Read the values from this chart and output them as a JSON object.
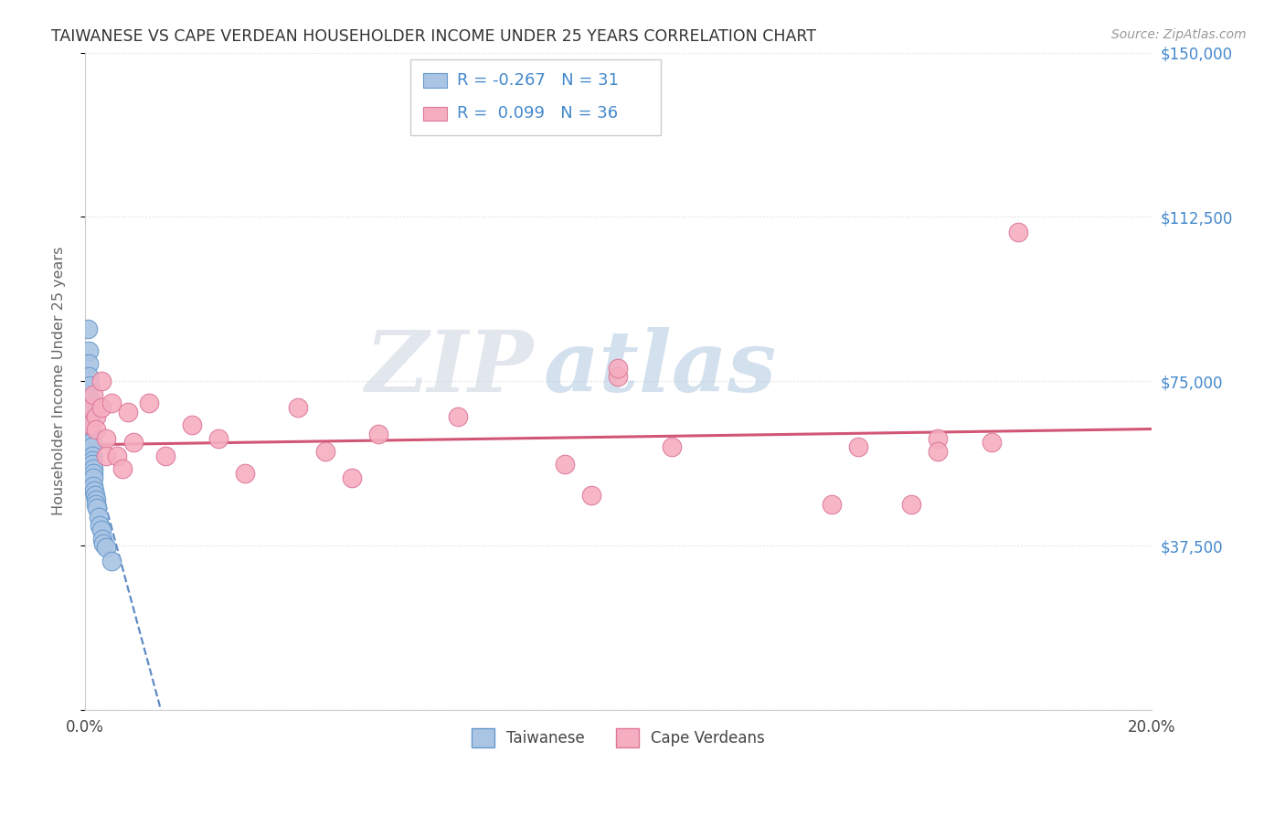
{
  "title": "TAIWANESE VS CAPE VERDEAN HOUSEHOLDER INCOME UNDER 25 YEARS CORRELATION CHART",
  "source": "Source: ZipAtlas.com",
  "ylabel": "Householder Income Under 25 years",
  "xlim": [
    0.0,
    0.2
  ],
  "ylim": [
    0,
    150000
  ],
  "yticks": [
    0,
    37500,
    75000,
    112500,
    150000
  ],
  "ytick_labels_right": [
    "",
    "$37,500",
    "$75,000",
    "$112,500",
    "$150,000"
  ],
  "xtick_vals": [
    0.0,
    0.025,
    0.05,
    0.075,
    0.1,
    0.125,
    0.15,
    0.175,
    0.2
  ],
  "taiwanese_color": "#aac4e4",
  "taiwanese_edge": "#6699cc",
  "cape_verdean_color": "#f5aec0",
  "cape_verdean_edge": "#dd7799",
  "trend_tw_color": "#4477bb",
  "trend_cv_color": "#cc4466",
  "R_taiwanese": -0.267,
  "N_taiwanese": 31,
  "R_cape_verdean": 0.099,
  "N_cape_verdean": 36,
  "watermark_zip": "ZIP",
  "watermark_atlas": "atlas",
  "background_color": "#ffffff",
  "grid_color": "#dddddd",
  "title_color": "#333333",
  "axis_label_color": "#666666",
  "right_tick_color": "#4488cc",
  "legend_text_color": "#4488cc",
  "tw_trend_intercept": 64000,
  "tw_trend_slope": -4500000,
  "cv_trend_intercept": 60500,
  "cv_trend_slope": 18000,
  "tw_x": [
    0.0005,
    0.0006,
    0.0007,
    0.0007,
    0.0008,
    0.0008,
    0.0009,
    0.001,
    0.001,
    0.001,
    0.0012,
    0.0012,
    0.0013,
    0.0014,
    0.0014,
    0.0015,
    0.0015,
    0.0016,
    0.0016,
    0.0017,
    0.0018,
    0.002,
    0.002,
    0.0022,
    0.0025,
    0.0028,
    0.003,
    0.0032,
    0.0035,
    0.004,
    0.005
  ],
  "tw_y": [
    87000,
    82000,
    79000,
    76000,
    74000,
    71000,
    68000,
    66000,
    64000,
    62000,
    61000,
    60000,
    58000,
    57000,
    56000,
    55000,
    54000,
    53000,
    51000,
    50000,
    49000,
    48000,
    47000,
    46000,
    44000,
    42000,
    41000,
    39000,
    38000,
    37000,
    34000
  ],
  "cv_x": [
    0.001,
    0.001,
    0.0015,
    0.002,
    0.002,
    0.003,
    0.003,
    0.004,
    0.004,
    0.005,
    0.006,
    0.007,
    0.008,
    0.009,
    0.012,
    0.015,
    0.02,
    0.025,
    0.03,
    0.04,
    0.045,
    0.05,
    0.055,
    0.07,
    0.09,
    0.095,
    0.1,
    0.1,
    0.11,
    0.14,
    0.145,
    0.155,
    0.16,
    0.16,
    0.17,
    0.175
  ],
  "cv_y": [
    65000,
    69000,
    72000,
    67000,
    64000,
    75000,
    69000,
    62000,
    58000,
    70000,
    58000,
    55000,
    68000,
    61000,
    70000,
    58000,
    65000,
    62000,
    54000,
    69000,
    59000,
    53000,
    63000,
    67000,
    56000,
    49000,
    76000,
    78000,
    60000,
    47000,
    60000,
    47000,
    62000,
    59000,
    61000,
    109000
  ]
}
